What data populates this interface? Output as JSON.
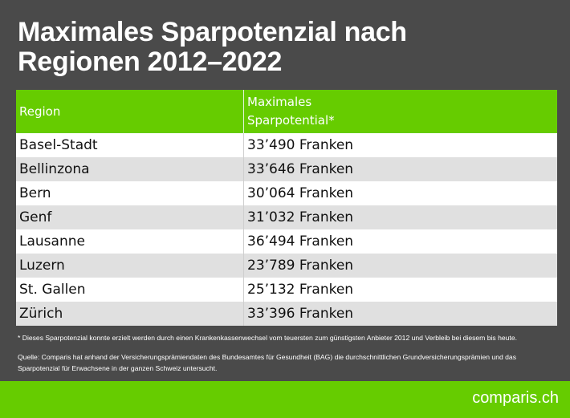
{
  "header": {
    "title": "Maximales Sparpotenzial nach Regionen 2012–2022"
  },
  "table": {
    "columns": [
      "Region",
      "Maximales Sparpotential*"
    ],
    "rows": [
      [
        "Basel-Stadt",
        "33’490 Franken"
      ],
      [
        "Bellinzona",
        "33’646 Franken"
      ],
      [
        "Bern",
        "30’064 Franken"
      ],
      [
        "Genf",
        "31’032 Franken"
      ],
      [
        "Lausanne",
        "36’494 Franken"
      ],
      [
        "Luzern",
        "23’789 Franken"
      ],
      [
        "St. Gallen",
        "25’132 Franken"
      ],
      [
        "Zürich",
        "33’396 Franken"
      ]
    ]
  },
  "notes": [
    "* Dieses Sparpotenzial konnte erzielt werden durch einen Krankenkassenwechsel vom teuersten zum günstigsten Anbieter 2012 und Verbleib bei diesem bis heute.",
    "Quelle: Comparis hat anhand der Versicherungsprämiendaten des Bundesamtes für Gesundheit (BAG) die durchschnittlichen Grundversicherungsprämien und das Sparpotenzial für Erwachsene in der ganzen Schweiz untersucht."
  ],
  "footer": {
    "logo": "comparis.ch"
  }
}
